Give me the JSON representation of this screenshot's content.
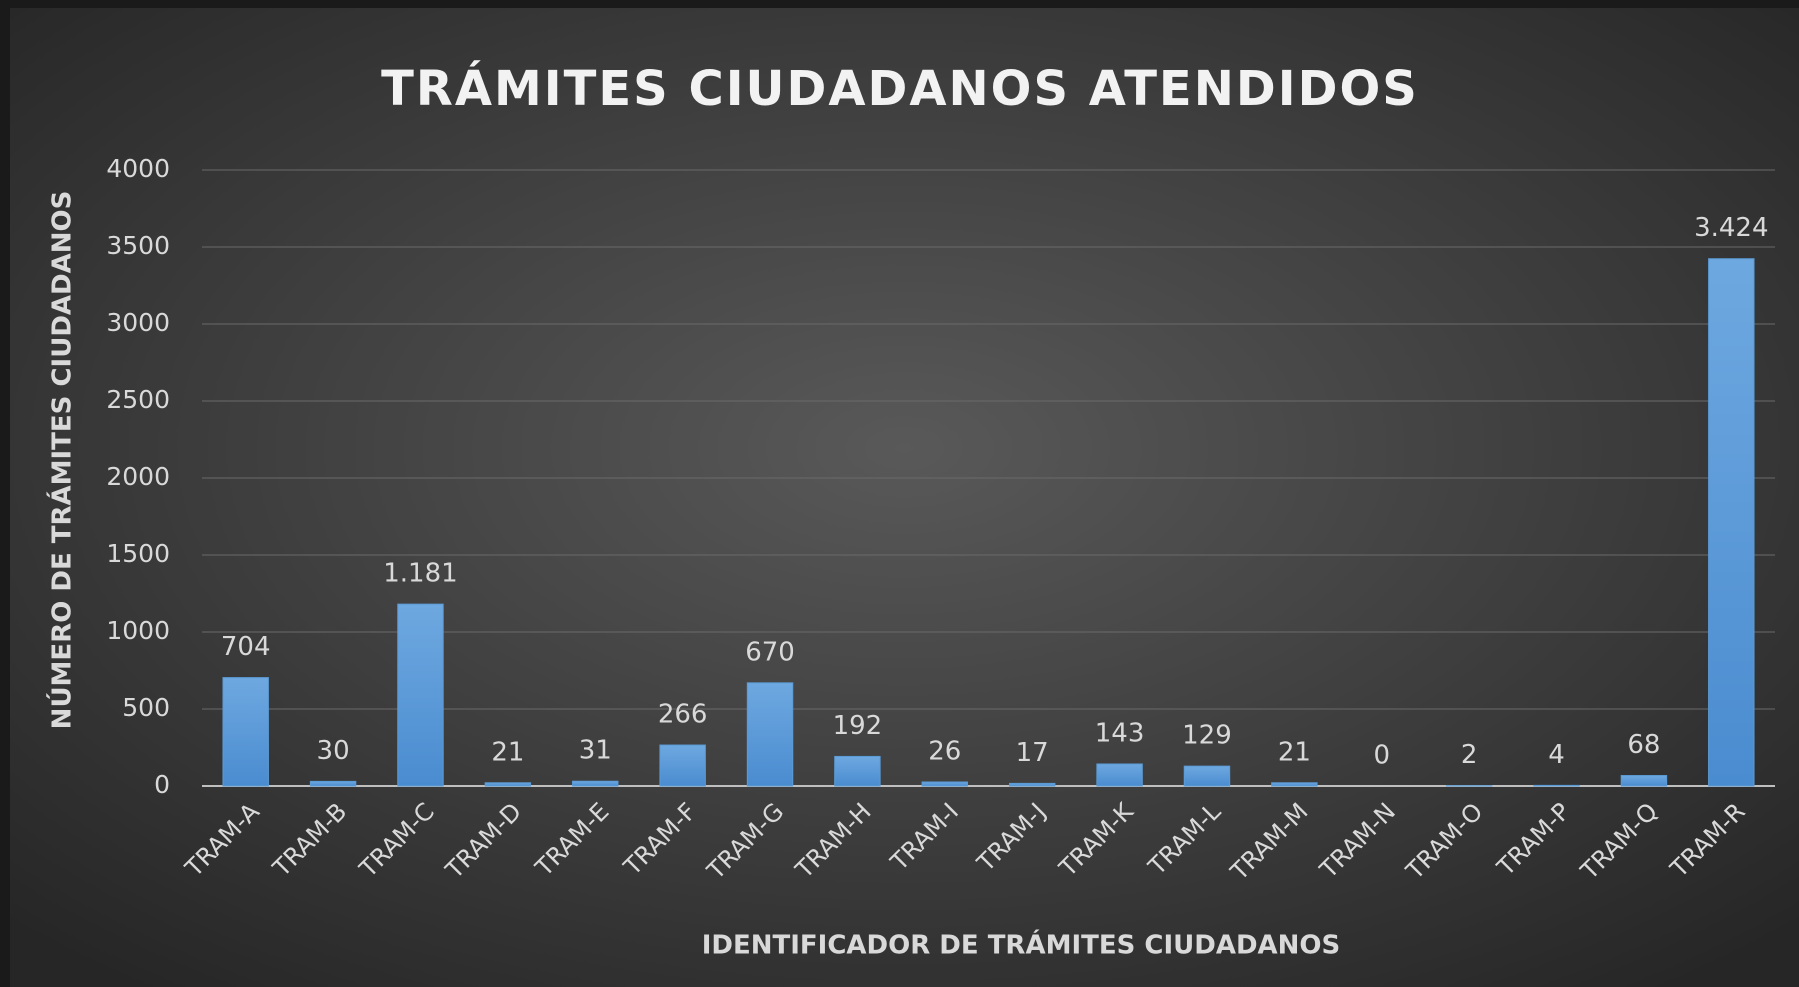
{
  "chart_data": {
    "type": "bar",
    "title": "TRÁMITES CIUDADANOS ATENDIDOS",
    "x_label": "IDENTIFICADOR DE TRÁMITES CIUDADANOS",
    "y_label": "NÚMERO DE TRÁMITES CIUDADANOS",
    "categories": [
      "TRAM-A",
      "TRAM-B",
      "TRAM-C",
      "TRAM-D",
      "TRAM-E",
      "TRAM-F",
      "TRAM-G",
      "TRAM-H",
      "TRAM-I",
      "TRAM-J",
      "TRAM-K",
      "TRAM-L",
      "TRAM-M",
      "TRAM-N",
      "TRAM-O",
      "TRAM-P",
      "TRAM-Q",
      "TRAM-R"
    ],
    "values": [
      704,
      30,
      1181,
      21,
      31,
      266,
      670,
      192,
      26,
      17,
      143,
      129,
      21,
      0,
      2,
      4,
      68,
      3424
    ],
    "value_labels": [
      "704",
      "30",
      "1.181",
      "21",
      "31",
      "266",
      "670",
      "192",
      "26",
      "17",
      "143",
      "129",
      "21",
      "0",
      "2",
      "4",
      "68",
      "3.424"
    ],
    "color": "#5b9bd5",
    "ylim": [
      0,
      4000
    ],
    "yticks": [
      0,
      500,
      1000,
      1500,
      2000,
      2500,
      3000,
      3500,
      4000
    ],
    "grid": true
  }
}
